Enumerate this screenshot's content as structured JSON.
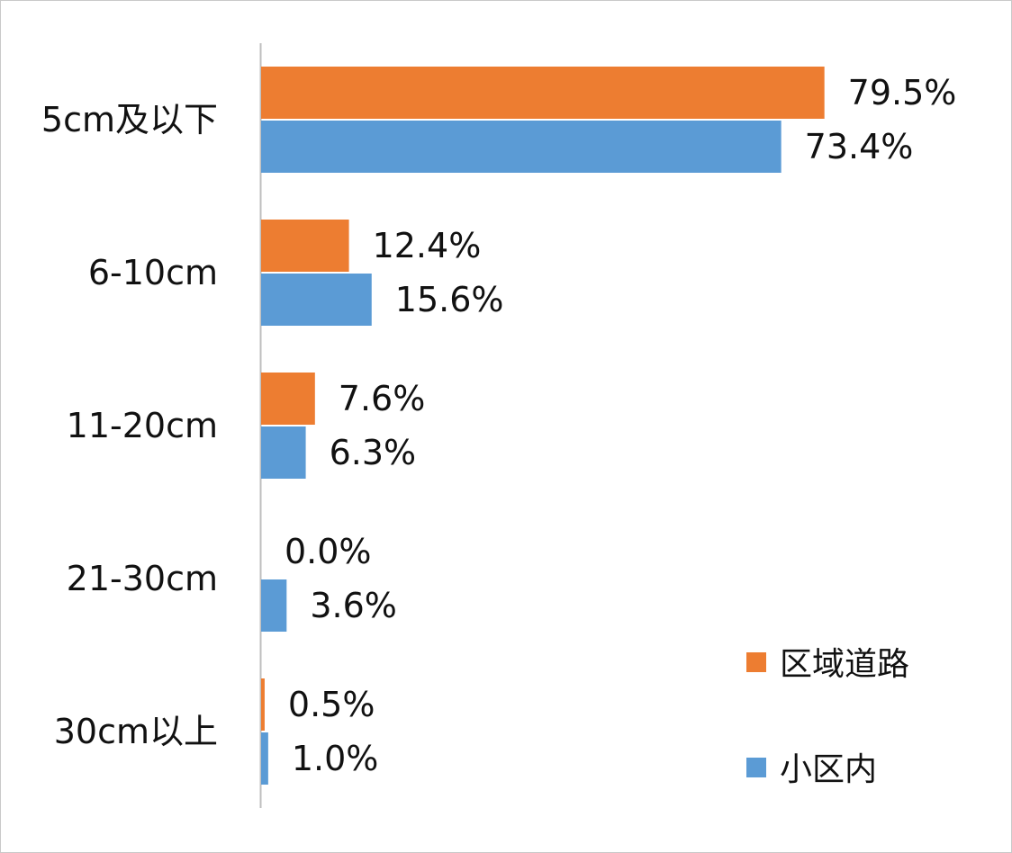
{
  "chart_data": {
    "type": "bar",
    "orientation": "horizontal",
    "categories": [
      "5cm及以下",
      "6-10cm",
      "11-20cm",
      "21-30cm",
      "30cm以上"
    ],
    "series": [
      {
        "name": "区域道路",
        "color": "#ED7D31",
        "values": [
          79.5,
          12.4,
          7.6,
          0.0,
          0.5
        ],
        "labels": [
          "79.5%",
          "12.4%",
          "7.6%",
          "0.0%",
          "0.5%"
        ]
      },
      {
        "name": "小区内",
        "color": "#5B9BD5",
        "values": [
          73.4,
          15.6,
          6.3,
          3.6,
          1.0
        ],
        "labels": [
          "73.4%",
          "15.6%",
          "6.3%",
          "3.6%",
          "1.0%"
        ]
      }
    ],
    "xlim": [
      0,
      100
    ],
    "grid": false,
    "legend_position": "bottom-right",
    "title": "",
    "xlabel": "",
    "ylabel": ""
  }
}
